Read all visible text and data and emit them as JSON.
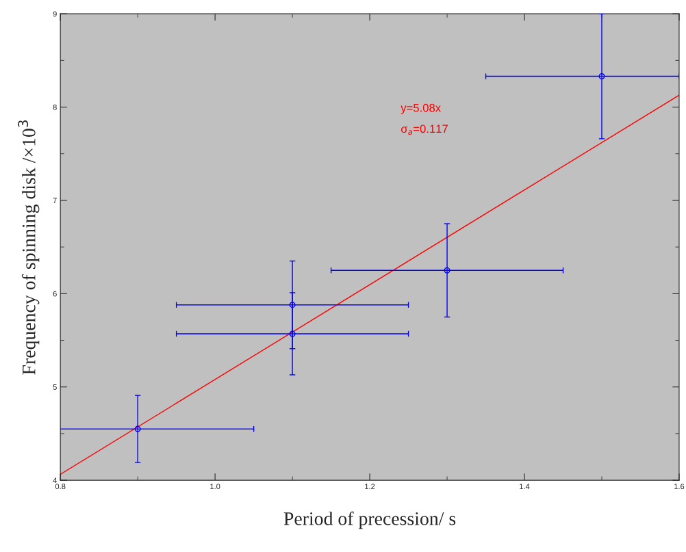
{
  "chart_data": {
    "type": "scatter",
    "xlabel": "Period of precession/ s",
    "ylabel": "Frequency of spinning disk /×10$^{3}$",
    "x": [
      0.9,
      1.1,
      1.1,
      1.3,
      1.5
    ],
    "series": [
      {
        "color": "#0000ff",
        "values": [
          4.55,
          5.88,
          5.57,
          6.25,
          8.33
        ],
        "marker": "circle",
        "errors": [
          0.36,
          0.47,
          0.44,
          0.5,
          0.67
        ],
        "xerrors": [
          0.15,
          0.15,
          0.15,
          0.15,
          [
            1.35,
            1.6
          ]
        ]
      },
      {
        "type": "line",
        "color": "#ff0000",
        "x": [
          0.8,
          1.6
        ],
        "values": [
          4.064,
          8.128
        ]
      }
    ],
    "annotations": [
      "y=5.08x",
      "σ$_{a}$=0.117"
    ],
    "xlim": [
      0.8,
      1.6
    ],
    "ylim": [
      4,
      9
    ],
    "xticks": [
      {
        "value": 0.8,
        "label": "0.8"
      },
      {
        "value": 1.0,
        "label": "1.0"
      },
      {
        "value": 1.2,
        "label": "1.2"
      },
      {
        "value": 1.4,
        "label": "1.4"
      },
      {
        "value": 1.6,
        "label": "1.6"
      }
    ],
    "yticks": [
      4,
      5,
      6,
      7,
      8,
      9
    ],
    "grid": false,
    "legend": false
  }
}
